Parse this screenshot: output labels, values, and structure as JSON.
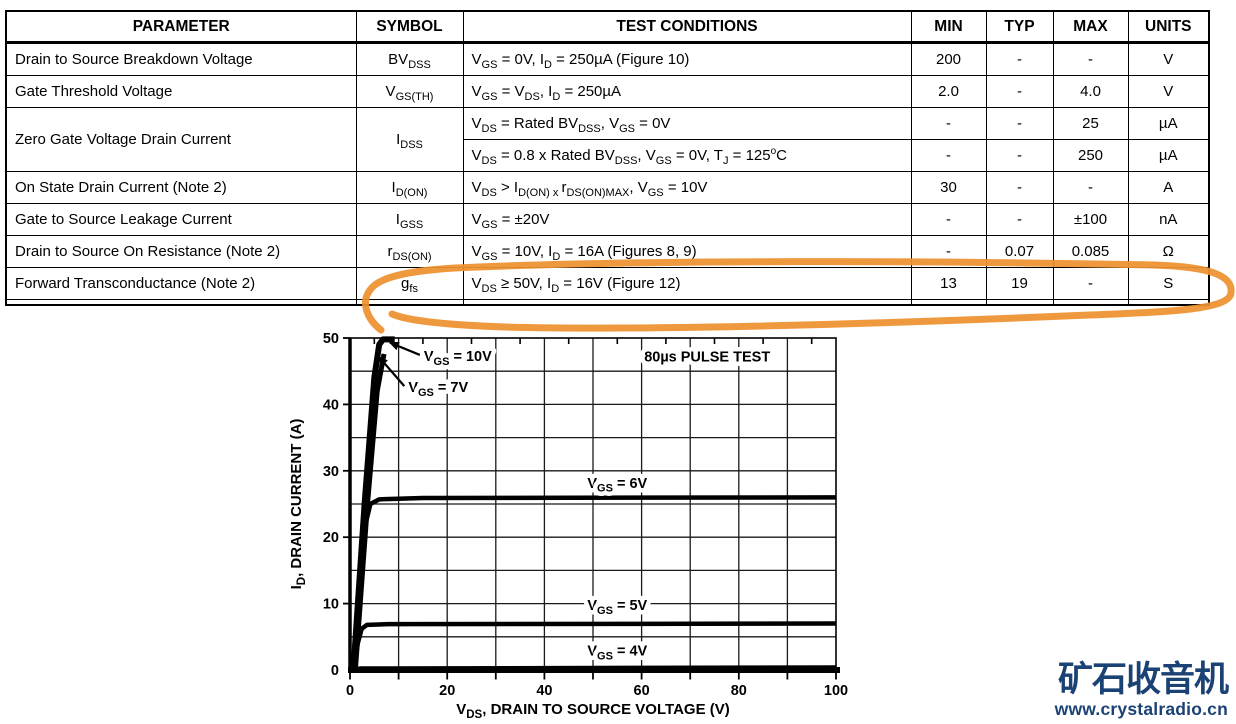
{
  "table": {
    "headers": [
      "PARAMETER",
      "SYMBOL",
      "TEST CONDITIONS",
      "MIN",
      "TYP",
      "MAX",
      "UNITS"
    ],
    "rows": [
      {
        "parameter": "Drain to Source Breakdown Voltage",
        "symbol": "BV~DSS~",
        "conditions": "V~GS~ = 0V, I~D~ = 250µA (Figure 10)",
        "min": "200",
        "typ": "-",
        "max": "-",
        "units": "V"
      },
      {
        "parameter": "Gate Threshold Voltage",
        "symbol": "V~GS(TH)~",
        "conditions": "V~GS~ = V~DS~, I~D~ = 250µA",
        "min": "2.0",
        "typ": "-",
        "max": "4.0",
        "units": "V"
      },
      {
        "parameter": "Zero Gate Voltage Drain Current",
        "symbol": "I~DSS~",
        "conditions": "V~DS~ = Rated BV~DSS~, V~GS~ = 0V",
        "min": "-",
        "typ": "-",
        "max": "25",
        "units": "µA"
      },
      {
        "parameter": "",
        "symbol": "",
        "conditions": "V~DS~ = 0.8 x Rated BV~DSS~, V~GS~ = 0V, T~J~ = 125^o^C",
        "min": "-",
        "typ": "-",
        "max": "250",
        "units": "µA"
      },
      {
        "parameter": "On State Drain Current (Note 2)",
        "symbol": "I~D(ON)~",
        "conditions": "V~DS~ > I~D(ON) x ~r~DS(ON)MAX~, V~GS~ = 10V",
        "min": "30",
        "typ": "-",
        "max": "-",
        "units": "A"
      },
      {
        "parameter": "Gate to Source Leakage Current",
        "symbol": "I~GSS~",
        "conditions": "V~GS~ = ±20V",
        "min": "-",
        "typ": "-",
        "max": "±100",
        "units": "nA"
      },
      {
        "parameter": "Drain to Source On Resistance (Note 2)",
        "symbol": "r~DS(ON)~",
        "conditions": "V~GS~ = 10V, I~D~ = 16A (Figures 8, 9)",
        "min": "-",
        "typ": "0.07",
        "max": "0.085",
        "units": "Ω"
      },
      {
        "parameter": "Forward Transconductance (Note 2)",
        "symbol": "g~fs~",
        "conditions": "V~DS~ ≥ 50V, I~D~ = 16V (Figure 12)",
        "min": "13",
        "typ": "19",
        "max": "-",
        "units": "S"
      }
    ]
  },
  "chart_data": {
    "type": "line",
    "xlabel": "V~DS~, DRAIN TO SOURCE VOLTAGE (V)",
    "ylabel": "I~D~, DRAIN CURRENT (A)",
    "xlim": [
      0,
      100
    ],
    "ylim": [
      0,
      50
    ],
    "x_tick_labels": [
      0,
      20,
      40,
      60,
      80,
      100
    ],
    "y_tick_labels": [
      0,
      10,
      20,
      30,
      40,
      50
    ],
    "x_grid_step": 10,
    "y_grid_step": 5,
    "grid": "on",
    "series": [
      {
        "name": "VGS = 10V",
        "width": 6,
        "points": [
          [
            0.7,
            0
          ],
          [
            3.0,
            25
          ],
          [
            5.0,
            44
          ],
          [
            6.0,
            49
          ],
          [
            6.8,
            49.8
          ],
          [
            9.2,
            49.8
          ]
        ]
      },
      {
        "name": "VGS = 7V",
        "width": 5,
        "points": [
          [
            1.1,
            0
          ],
          [
            3.6,
            25
          ],
          [
            5.6,
            42
          ],
          [
            7.0,
            47.6
          ]
        ]
      },
      {
        "name": "VGS = 6V",
        "width": 4.5,
        "points": [
          [
            0.9,
            0
          ],
          [
            2.2,
            14
          ],
          [
            3.2,
            22
          ],
          [
            4.2,
            25
          ],
          [
            6,
            25.7
          ],
          [
            15,
            25.9
          ],
          [
            100,
            26
          ]
        ]
      },
      {
        "name": "VGS = 5V",
        "width": 4.5,
        "points": [
          [
            0.8,
            0
          ],
          [
            1.6,
            4
          ],
          [
            2.4,
            6.2
          ],
          [
            3.5,
            6.8
          ],
          [
            8,
            6.9
          ],
          [
            100,
            7
          ]
        ]
      },
      {
        "name": "VGS = 4V",
        "width": 3.5,
        "points": [
          [
            0.5,
            0
          ],
          [
            2,
            0.3
          ],
          [
            100,
            0.45
          ]
        ]
      }
    ],
    "labels": [
      {
        "text": "V~GS~ = 10V",
        "x": 15.2,
        "y": 47.3,
        "anchor": "start",
        "arrow_to": [
          8.2,
          49.3
        ]
      },
      {
        "text": "V~GS~ = 7V",
        "x": 12.0,
        "y": 42.6,
        "anchor": "start",
        "arrow_to": [
          5.9,
          47.2
        ]
      },
      {
        "text": "V~GS~ = 6V",
        "x": 55,
        "y": 28.2,
        "anchor": "middle"
      },
      {
        "text": "V~GS~ = 5V",
        "x": 55,
        "y": 9.8,
        "anchor": "middle"
      },
      {
        "text": "V~GS~ = 4V",
        "x": 55,
        "y": 2.9,
        "anchor": "middle"
      },
      {
        "text": "80µs PULSE TEST",
        "x": 73.5,
        "y": 47.2,
        "anchor": "middle"
      }
    ]
  },
  "highlight": {
    "color": "#ee9130"
  },
  "watermark": {
    "logo": "矿石收音机",
    "url": "www.crystalradio.cn",
    "color": "#1b4274"
  }
}
